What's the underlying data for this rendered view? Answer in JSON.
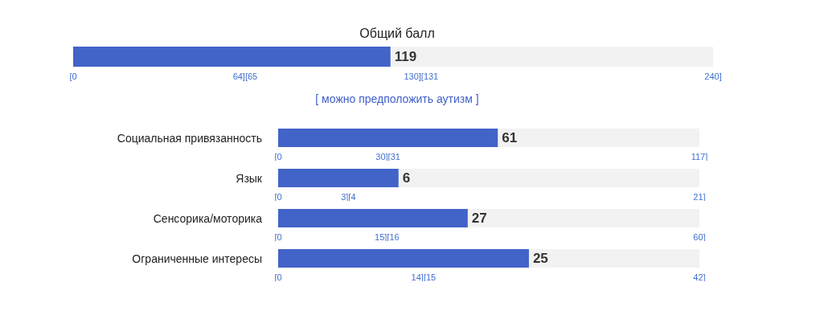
{
  "chart_data": [
    {
      "type": "bar",
      "orientation": "horizontal",
      "title": "Общий балл",
      "categories": [
        null
      ],
      "values": [
        119
      ],
      "color": "#4263c8",
      "xlim": [
        0,
        240
      ],
      "xticks": [
        {
          "value": 0,
          "label": "[0"
        },
        {
          "value": 64.5,
          "label": "64][65"
        },
        {
          "value": 130.5,
          "label": "130][131"
        },
        {
          "value": 240,
          "label": "240]"
        }
      ],
      "data_labels": true,
      "grid": false,
      "annotations": [
        "[ можно предположить аутизм ]"
      ]
    },
    {
      "type": "bar",
      "orientation": "horizontal",
      "categories": [
        "Социальная привязанность"
      ],
      "values": [
        61
      ],
      "color": "#4263c8",
      "xlim": [
        0,
        117
      ],
      "xticks": [
        {
          "value": 0,
          "label": "[0"
        },
        {
          "value": 30.5,
          "label": "30][31"
        },
        {
          "value": 117,
          "label": "117]"
        }
      ],
      "data_labels": true,
      "grid": false
    },
    {
      "type": "bar",
      "orientation": "horizontal",
      "categories": [
        "Язык"
      ],
      "values": [
        6
      ],
      "color": "#4263c8",
      "xlim": [
        0,
        21
      ],
      "xticks": [
        {
          "value": 0,
          "label": "[0"
        },
        {
          "value": 3.5,
          "label": "3][4"
        },
        {
          "value": 21,
          "label": "21]"
        }
      ],
      "data_labels": true,
      "grid": false
    },
    {
      "type": "bar",
      "orientation": "horizontal",
      "categories": [
        "Сенсорика/моторика"
      ],
      "values": [
        27
      ],
      "color": "#4263c8",
      "xlim": [
        0,
        60
      ],
      "xticks": [
        {
          "value": 0,
          "label": "[0"
        },
        {
          "value": 15.5,
          "label": "15][16"
        },
        {
          "value": 60,
          "label": "60]"
        }
      ],
      "data_labels": true,
      "grid": false
    },
    {
      "type": "bar",
      "orientation": "horizontal",
      "categories": [
        "Ограниченные интересы"
      ],
      "values": [
        25
      ],
      "color": "#4263c8",
      "xlim": [
        0,
        42
      ],
      "xticks": [
        {
          "value": 0,
          "label": "[0"
        },
        {
          "value": 14.5,
          "label": "14][15"
        },
        {
          "value": 42,
          "label": "42]"
        }
      ],
      "data_labels": true,
      "grid": false
    }
  ]
}
